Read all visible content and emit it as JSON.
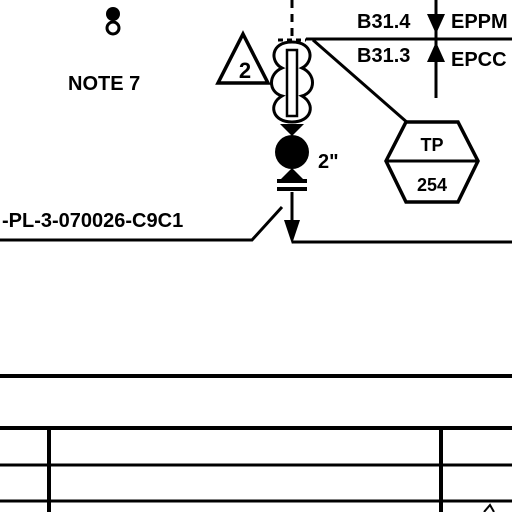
{
  "note_label": "NOTE 7",
  "revision_marker": "2",
  "valve_size": "2\"",
  "line_number": "-PL-3-070026-C9C1",
  "spec_top": {
    "code": "B31.4",
    "material": "EPPM"
  },
  "spec_bottom": {
    "code": "B31.3",
    "material": "EPCC"
  },
  "tag": {
    "type": "TP",
    "number": "254"
  },
  "colors": {
    "ink": "#000000",
    "paper": "#ffffff"
  }
}
